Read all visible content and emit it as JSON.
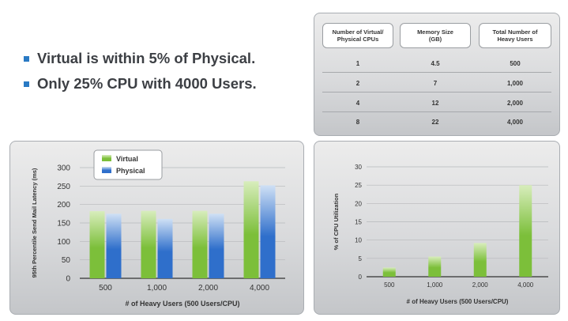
{
  "bullets": [
    "Virtual is within 5% of Physical.",
    "Only 25% CPU with 4000 Users."
  ],
  "table": {
    "headers": [
      "Number of Virtual/\nPhysical CPUs",
      "Memory Size\n(GB)",
      "Total Number of\nHeavy Users"
    ],
    "rows": [
      [
        "1",
        "4.5",
        "500"
      ],
      [
        "2",
        "7",
        "1,000"
      ],
      [
        "4",
        "12",
        "2,000"
      ],
      [
        "8",
        "22",
        "4,000"
      ]
    ]
  },
  "colors": {
    "virtual": "#7cbf3a",
    "physical": "#2f6fcb",
    "bullet": "#2a7ac4"
  },
  "chart_data": [
    {
      "type": "bar",
      "categories": [
        "500",
        "1,000",
        "2,000",
        "4,000"
      ],
      "series": [
        {
          "name": "Virtual",
          "values": [
            182,
            183,
            183,
            263
          ]
        },
        {
          "name": "Physical",
          "values": [
            175,
            161,
            175,
            252
          ]
        }
      ],
      "ylabel": "95th Percentile Send Mail Latency (ms)",
      "xlabel": "# of Heavy Users (500 Users/CPU)",
      "yticks": [
        0,
        50,
        100,
        150,
        200,
        250,
        300
      ],
      "ylim": [
        0,
        300
      ],
      "legend_position": "top-left",
      "grid": true
    },
    {
      "type": "bar",
      "categories": [
        "500",
        "1,000",
        "2,000",
        "4,000"
      ],
      "values": [
        2.5,
        5.5,
        9.2,
        25
      ],
      "ylabel": "% of CPU Utilization",
      "xlabel": "# of Heavy Users (500 Users/CPU)",
      "yticks": [
        0,
        5,
        10,
        15,
        20,
        25,
        30
      ],
      "ylim": [
        0,
        30
      ],
      "grid": true
    }
  ]
}
